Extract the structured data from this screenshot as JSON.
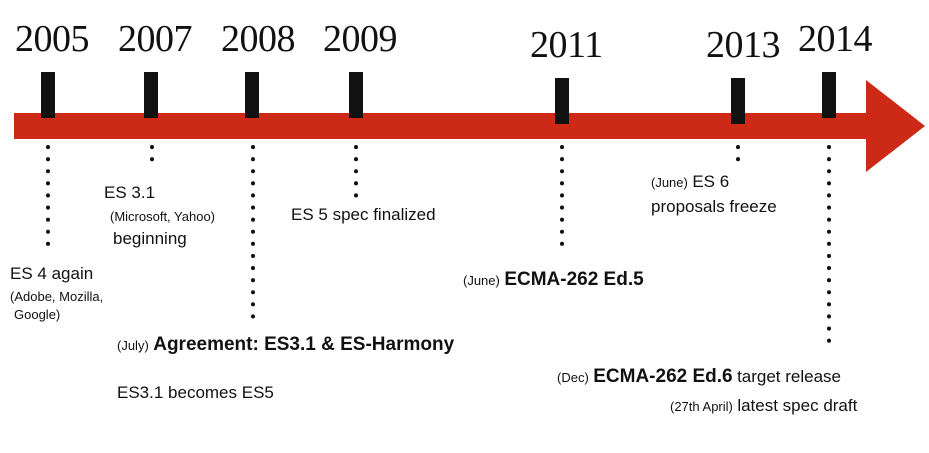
{
  "colors": {
    "arrow": "#cc2a17",
    "marker": "#111111",
    "text": "#111111"
  },
  "years": [
    "2005",
    "2007",
    "2008",
    "2009",
    "2011",
    "2013",
    "2014"
  ],
  "events": {
    "e2005": {
      "line1": "ES 4 again",
      "line2": "(Adobe, Mozilla,",
      "line3": "Google)"
    },
    "e2007": {
      "line1": "ES 3.1",
      "line2": "(Microsoft, Yahoo)",
      "line3": "beginning"
    },
    "e2008": {
      "prefix": "(July)",
      "title": "Agreement: ES3.1 & ES-Harmony",
      "note": "ES3.1 becomes ES5"
    },
    "e2009": {
      "text": "ES 5 spec finalized"
    },
    "e2011": {
      "prefix": "(June)",
      "title": "ECMA-262 Ed.5"
    },
    "e2013": {
      "prefix": "(June)",
      "line1": "ES 6",
      "line2": "proposals freeze"
    },
    "e2014": {
      "prefix": "(Dec)",
      "title": "ECMA-262 Ed.6",
      "suffix": "target release",
      "prefix2": "(27th April)",
      "note": "latest spec draft"
    }
  }
}
